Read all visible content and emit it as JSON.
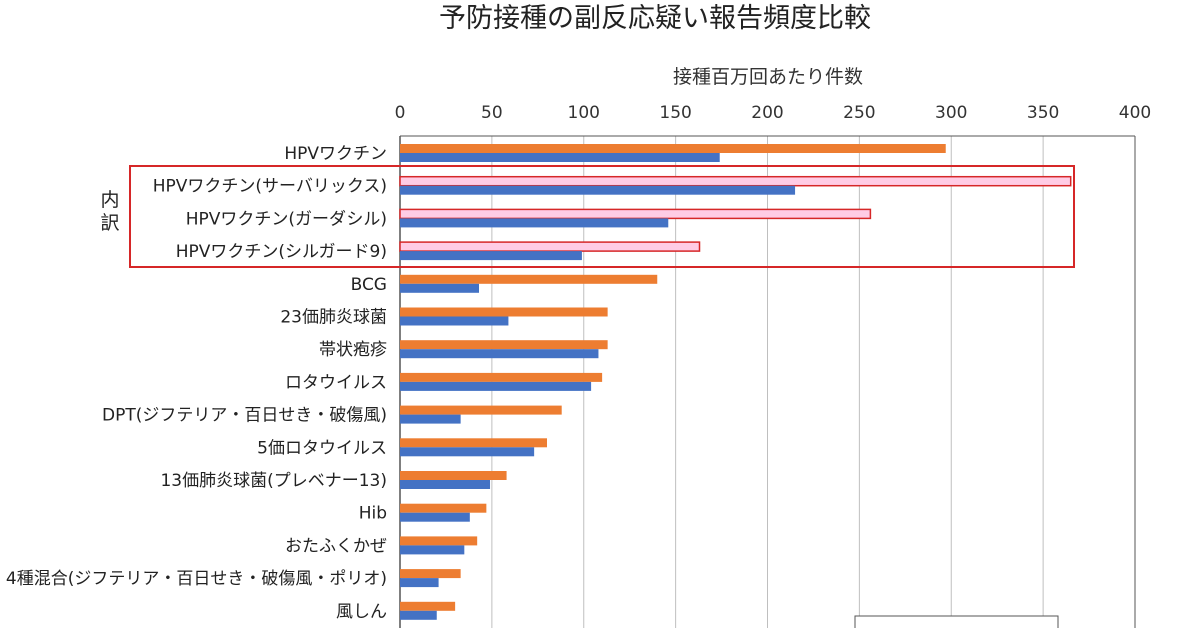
{
  "chart_data": {
    "type": "bar",
    "orientation": "horizontal",
    "title": "予防接種の副反応疑い報告頻度比較",
    "xlabel": "接種百万回あたり件数",
    "xlim": [
      0,
      400
    ],
    "xticks": [
      0,
      50,
      100,
      150,
      200,
      250,
      300,
      350,
      400
    ],
    "grid": true,
    "categories": [
      "HPVワクチン",
      "HPVワクチン(サーバリックス)",
      "HPVワクチン(ガーダシル)",
      "HPVワクチン(シルガード9)",
      "BCG",
      "23価肺炎球菌",
      "帯状疱疹",
      "ロタウイルス",
      "DPT(ジフテリア・百日せき・破傷風)",
      "5価ロタウイルス",
      "13価肺炎球菌(プレベナー13)",
      "Hib",
      "おたふくかぜ",
      "4種混合(ジフテリア・百日せき・破傷風・ポリオ)",
      "風しん"
    ],
    "series": [
      {
        "color": "#ED7D31",
        "values": [
          297,
          365,
          256,
          163,
          140,
          113,
          113,
          110,
          88,
          80,
          58,
          47,
          42,
          33,
          30
        ]
      },
      {
        "color": "#4472C4",
        "values": [
          174,
          215,
          146,
          99,
          43,
          59,
          108,
          104,
          33,
          73,
          49,
          38,
          35,
          21,
          20
        ]
      }
    ],
    "highlight": {
      "label": "内訳",
      "categories": [
        1,
        2,
        3
      ],
      "color": "#D62728",
      "fill": "#FFCCE5"
    }
  }
}
